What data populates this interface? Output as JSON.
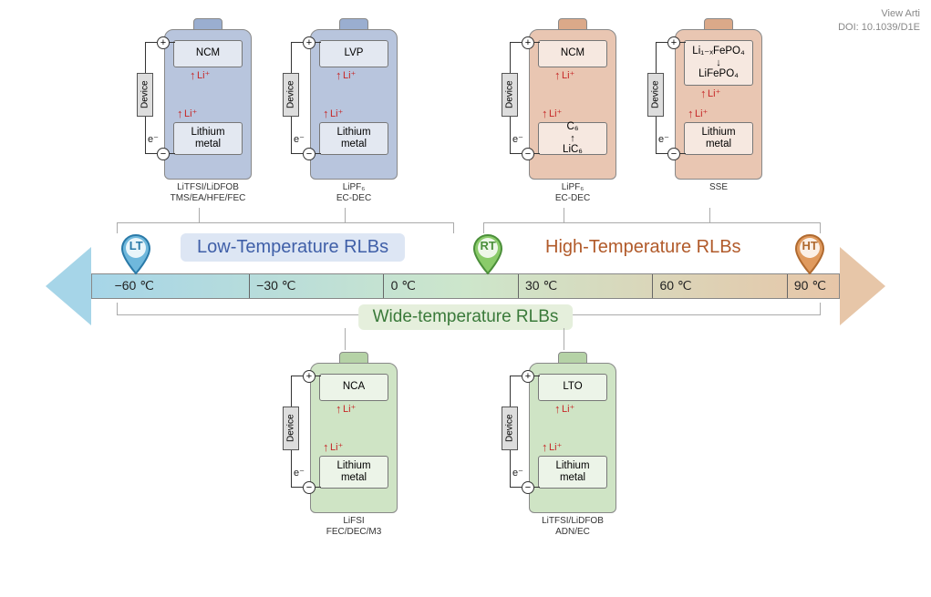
{
  "meta": {
    "view_article": "View Arti",
    "doi": "DOI: 10.1039/D1E"
  },
  "axis": {
    "ticks": [
      {
        "label": "−60 ℃",
        "pct": 5
      },
      {
        "label": "−30 ℃",
        "pct": 24
      },
      {
        "label": "0 ℃",
        "pct": 42
      },
      {
        "label": "30 ℃",
        "pct": 60
      },
      {
        "label": "60 ℃",
        "pct": 78
      },
      {
        "label": "90 ℃",
        "pct": 96
      }
    ],
    "gradient_colors": [
      "#a6d5e8",
      "#cde6cb",
      "#e7c6a8"
    ]
  },
  "pins": {
    "lt": {
      "label": "LT",
      "fill": "#6fb8dc",
      "stroke": "#2a7aa8",
      "pct": 6
    },
    "rt": {
      "label": "RT",
      "fill": "#8acb6a",
      "stroke": "#4b8f3a",
      "pct": 53
    },
    "ht": {
      "label": "HT",
      "fill": "#e09a5e",
      "stroke": "#b06a30",
      "pct": 96
    }
  },
  "regions": {
    "low": {
      "text": "Low-Temperature RLBs",
      "color": "#3f5fa8",
      "bg": "#dde6f4"
    },
    "high": {
      "text": "High-Temperature RLBs",
      "color": "#b15a2a",
      "bg": "transparent"
    },
    "wide": {
      "text": "Wide-temperature RLBs",
      "color": "#3a7a3a",
      "bg": "#e5efdc"
    }
  },
  "cells": {
    "colors": {
      "blue_body": "#b8c5dd",
      "blue_cap": "#9aaed0",
      "orange_body": "#e9c6b2",
      "orange_cap": "#dba989",
      "green_body": "#cfe4c5",
      "green_cap": "#b5d2a6"
    },
    "top": [
      {
        "id": "ncm-li",
        "color": "blue",
        "cathode": [
          "NCM"
        ],
        "anode": [
          "Lithium",
          "metal"
        ],
        "electrolyte": [
          "LiTFSI/LiDFOB",
          "TMS/EA/HFE/FEC"
        ],
        "li_top": "Li⁺",
        "li_mid": "Li⁺"
      },
      {
        "id": "lvp-li",
        "color": "blue",
        "cathode": [
          "LVP"
        ],
        "anode": [
          "Lithium",
          "metal"
        ],
        "electrolyte": [
          "LiPF₆",
          "EC-DEC"
        ],
        "li_top": "Li⁺",
        "li_mid": "Li⁺"
      },
      {
        "id": "ncm-c6",
        "color": "orange",
        "cathode": [
          "NCM"
        ],
        "anode": [
          "C₆",
          "↑",
          "LiC₆"
        ],
        "electrolyte": [
          "LiPF₆",
          "EC-DEC"
        ],
        "li_top": "Li⁺",
        "li_mid": "Li⁺"
      },
      {
        "id": "lfp-li",
        "color": "orange",
        "cathode": [
          "Li₁₋ₓFePO₄",
          "↓",
          "LiFePO₄"
        ],
        "anode": [
          "Lithium",
          "metal"
        ],
        "electrolyte": [
          "SSE"
        ],
        "li_top": "Li⁺",
        "li_mid": "Li⁺",
        "tall_cathode": true
      }
    ],
    "bottom": [
      {
        "id": "nca-li",
        "color": "green",
        "cathode": [
          "NCA"
        ],
        "anode": [
          "Lithium",
          "metal"
        ],
        "electrolyte": [
          "LiFSI",
          "FEC/DEC/M3"
        ],
        "li_top": "Li⁺",
        "li_mid": "Li⁺"
      },
      {
        "id": "lto-li",
        "color": "green",
        "cathode": [
          "LTO"
        ],
        "anode": [
          "Lithium",
          "metal"
        ],
        "electrolyte": [
          "LiTFSI/LiDFOB",
          "ADN/EC"
        ],
        "li_top": "Li⁺",
        "li_mid": "Li⁺"
      }
    ]
  },
  "labels": {
    "device": "Device",
    "eminus": "e⁻",
    "plus": "+",
    "minus": "−"
  }
}
